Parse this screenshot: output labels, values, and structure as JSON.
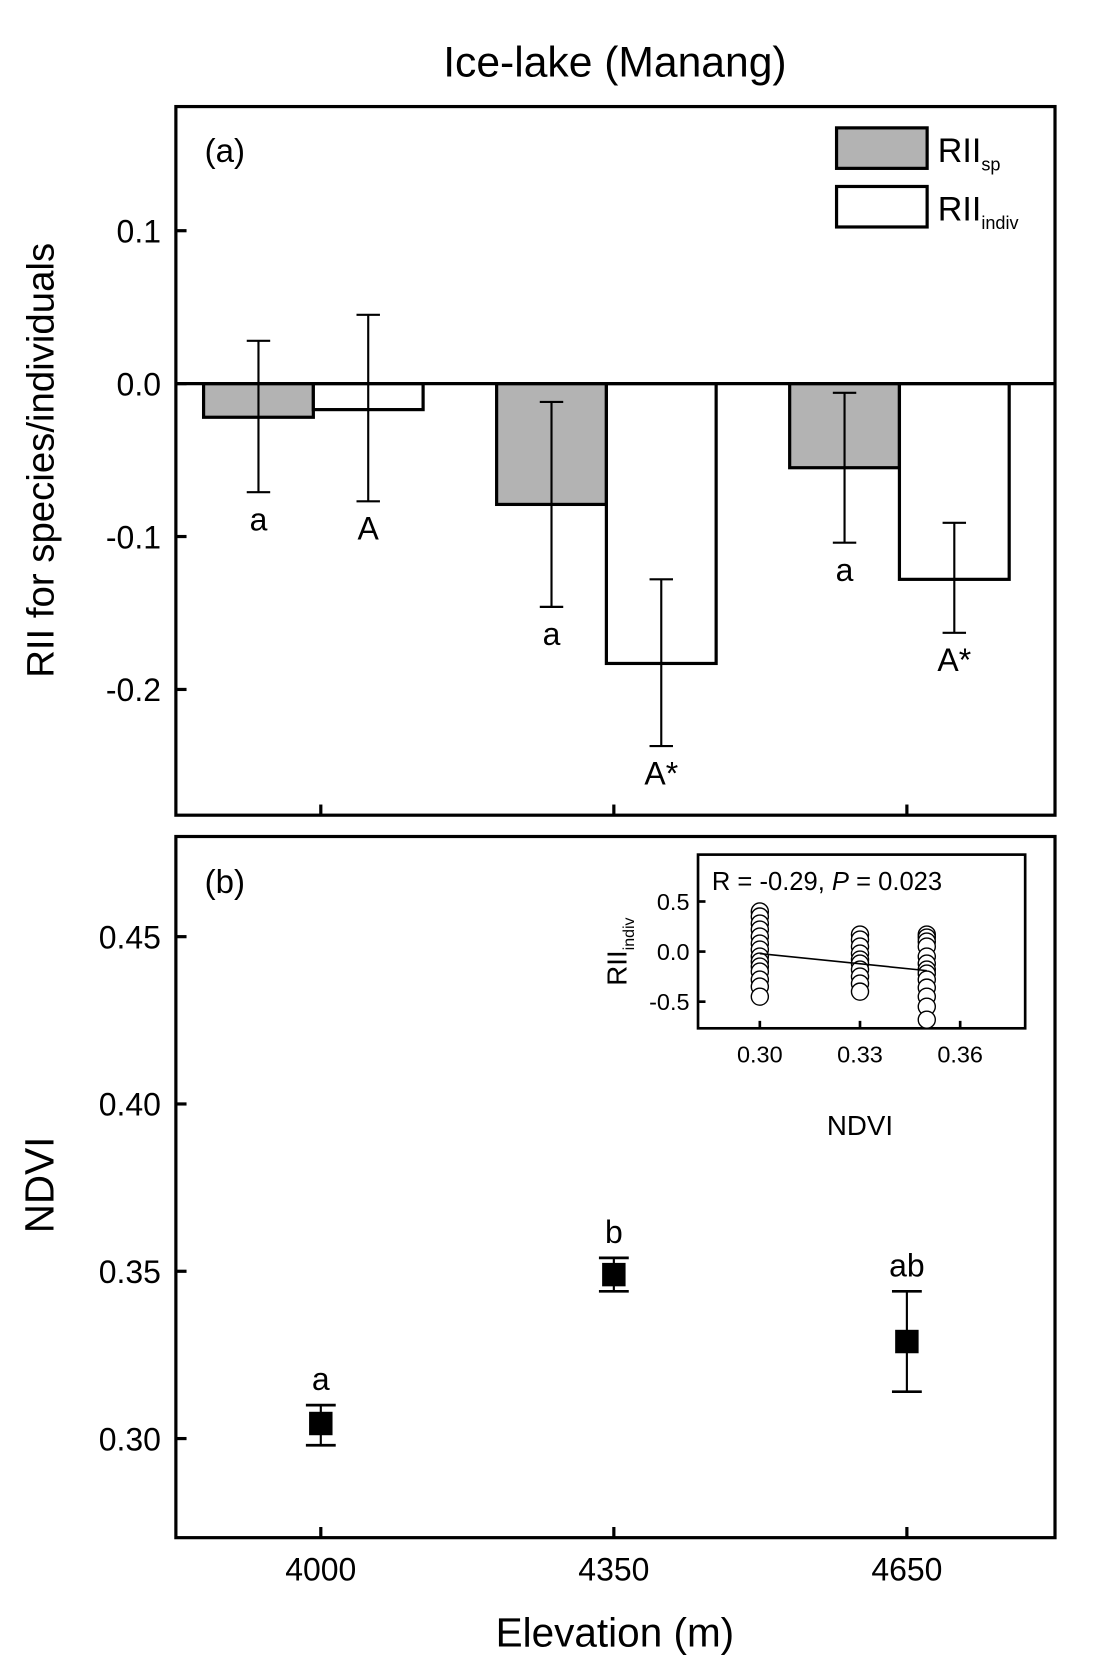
{
  "figure_title": "Ice-lake (Manang)",
  "chart_data": [
    {
      "type": "bar",
      "panel_label": "(a)",
      "ylabel": "RII for species/individuals",
      "categories": [
        "4000",
        "4350",
        "4650"
      ],
      "ylim": [
        -0.28,
        0.18
      ],
      "yticks": [
        0.1,
        0.0,
        -0.1,
        -0.2
      ],
      "ytick_labels": [
        "0.1",
        "0.0",
        "-0.1",
        "-0.2"
      ],
      "legend": {
        "position": "top-right",
        "entries": [
          {
            "main": "RII",
            "sub": "sp"
          },
          {
            "main": "RII",
            "sub": "indiv"
          }
        ]
      },
      "series": [
        {
          "name": "RII_sp",
          "color": "#b3b3b3",
          "values": [
            -0.022,
            -0.079,
            -0.055
          ],
          "err_high": [
            0.028,
            -0.012,
            -0.006
          ],
          "err_low": [
            -0.071,
            -0.146,
            -0.104
          ],
          "letters": [
            "a",
            "a",
            "a"
          ]
        },
        {
          "name": "RII_indiv",
          "color": "#ffffff",
          "values": [
            -0.017,
            -0.183,
            -0.128
          ],
          "err_high": [
            0.045,
            -0.128,
            -0.091
          ],
          "err_low": [
            -0.077,
            -0.237,
            -0.163
          ],
          "letters": [
            "A",
            "A*",
            "A*"
          ]
        }
      ]
    },
    {
      "type": "scatter",
      "panel_label": "(b)",
      "xlabel": "Elevation (m)",
      "ylabel": "NDVI",
      "categories": [
        "4000",
        "4350",
        "4650"
      ],
      "ylim": [
        0.27,
        0.477
      ],
      "yticks": [
        0.45,
        0.4,
        0.35,
        0.3
      ],
      "ytick_labels": [
        "0.45",
        "0.40",
        "0.35",
        "0.30"
      ],
      "values": [
        0.3045,
        0.349,
        0.329
      ],
      "err_high": [
        0.31,
        0.354,
        0.344
      ],
      "err_low": [
        0.298,
        0.344,
        0.314
      ],
      "letters": [
        "a",
        "b",
        "ab"
      ]
    },
    {
      "type": "scatter",
      "inset": true,
      "annotation": {
        "r": "R = -0.29, ",
        "p_label": "P",
        "p": " = 0.023"
      },
      "xlabel": "NDVI",
      "ylabel": {
        "main": "RII",
        "sub": "indiv"
      },
      "xlim": [
        0.28,
        0.378
      ],
      "ylim": [
        -0.87,
        0.87
      ],
      "xticks": [
        0.3,
        0.33,
        0.36
      ],
      "xtick_labels": [
        "0.30",
        "0.33",
        "0.36"
      ],
      "yticks": [
        0.5,
        0.0,
        -0.5
      ],
      "ytick_labels": [
        "0.5",
        "0.0",
        "-0.5"
      ],
      "points": {
        "0.30": [
          0.4,
          0.35,
          0.28,
          0.22,
          0.15,
          0.08,
          0.02,
          -0.05,
          -0.1,
          -0.15,
          -0.2,
          -0.28,
          -0.35,
          -0.45
        ],
        "0.33": [
          0.17,
          0.12,
          0.05,
          -0.02,
          -0.08,
          -0.12,
          -0.18,
          -0.25,
          -0.32,
          -0.4
        ],
        "0.35": [
          0.17,
          0.14,
          0.1,
          0.05,
          -0.05,
          -0.12,
          -0.18,
          -0.22,
          -0.28,
          -0.36,
          -0.45,
          -0.55,
          -0.68
        ]
      },
      "fit_line": {
        "x": [
          0.3,
          0.35
        ],
        "y": [
          -0.02,
          -0.19
        ]
      }
    }
  ]
}
